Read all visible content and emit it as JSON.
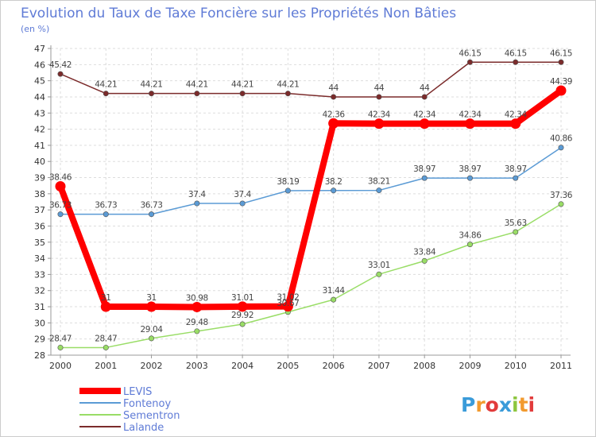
{
  "chart_data": {
    "type": "line",
    "title": "Evolution du Taux de Taxe Foncière sur les Propriétés Non Bâties",
    "subtitle": "(en %)",
    "xlabel": "",
    "ylabel": "",
    "ylim": [
      28,
      47
    ],
    "yticks": [
      28,
      29,
      30,
      31,
      32,
      33,
      34,
      35,
      36,
      37,
      38,
      39,
      40,
      41,
      42,
      43,
      44,
      45,
      46,
      47
    ],
    "categories": [
      "2000",
      "2001",
      "2002",
      "2003",
      "2004",
      "2005",
      "2006",
      "2007",
      "2008",
      "2009",
      "2010",
      "2011"
    ],
    "legend_position": "bottom-left",
    "grid": true,
    "series": [
      {
        "name": "Lalande",
        "color": "#7b2b2b",
        "values": [
          45.42,
          44.21,
          44.21,
          44.21,
          44.21,
          44.21,
          44,
          44,
          44,
          46.15,
          46.15,
          46.15
        ],
        "labels": [
          "45.42",
          "44.21",
          "44.21",
          "44.21",
          "44.21",
          "44.21",
          "44",
          "44",
          "44",
          "46.15",
          "46.15",
          "46.15"
        ]
      },
      {
        "name": "Fontenoy",
        "color": "#5b9bd5",
        "values": [
          36.73,
          36.73,
          36.73,
          37.4,
          37.4,
          38.19,
          38.2,
          38.21,
          38.97,
          38.97,
          38.97,
          40.86
        ],
        "labels": [
          "36.73",
          "36.73",
          "36.73",
          "37.4",
          "37.4",
          "38.19",
          "38.2",
          "38.21",
          "38.97",
          "38.97",
          "38.97",
          "40.86"
        ]
      },
      {
        "name": "Sementron",
        "color": "#99dd66",
        "values": [
          28.47,
          28.47,
          29.04,
          29.48,
          29.92,
          30.67,
          31.44,
          33.01,
          33.84,
          34.86,
          35.63,
          37.36
        ],
        "labels": [
          "28.47",
          "28.47",
          "29.04",
          "29.48",
          "29.92",
          "30.67",
          "31.44",
          "33.01",
          "33.84",
          "34.86",
          "35.63",
          "37.36"
        ]
      },
      {
        "name": "LEVIS",
        "color": "#ff0000",
        "values": [
          38.46,
          31,
          31,
          30.98,
          31.01,
          31.02,
          42.36,
          42.34,
          42.34,
          42.34,
          42.34,
          44.39
        ],
        "labels": [
          "38.46",
          "31",
          "31",
          "30.98",
          "31.01",
          "31.02",
          "42.36",
          "42.34",
          "42.34",
          "42.34",
          "42.34",
          "44.39"
        ]
      }
    ],
    "legend": [
      "LEVIS",
      "Fontenoy",
      "Sementron",
      "Lalande"
    ]
  },
  "logo": {
    "text": "Proxiti",
    "letters": [
      "P",
      "r",
      "o",
      "x",
      "i",
      "t",
      "i"
    ],
    "colors": [
      "#3a9bd9",
      "#f29a2e",
      "#e23b3b",
      "#3a9bd9",
      "#8dc63f",
      "#f29a2e",
      "#e23b3b"
    ]
  }
}
